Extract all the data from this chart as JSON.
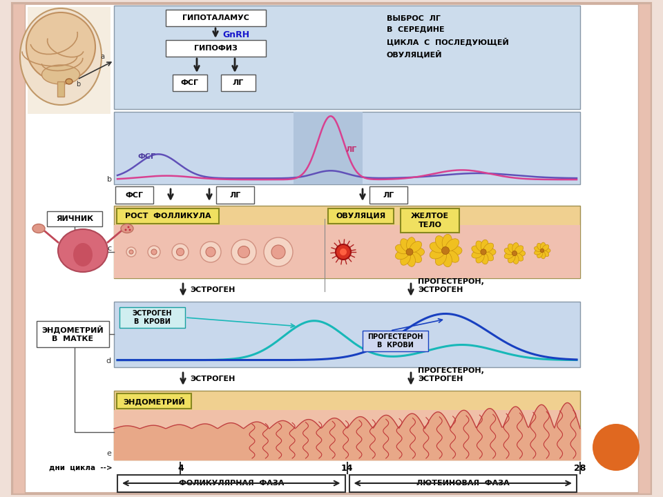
{
  "bg_color": "#f0e0d8",
  "slide_bg": "#ffffff",
  "panel_b_bg": "#c8d8ec",
  "panel_c_bg": "#f0d090",
  "panel_d_bg": "#c8d8ec",
  "panel_e_bg": "#f0d090",
  "box_border": "#333333",
  "arrow_color": "#222222",
  "highlight_box_bg": "#f0e060",
  "orange_circle_color": "#e06820",
  "title_top": "ГИПОТАЛАМУС",
  "title_gnrh": "GnRH",
  "title_gipofiz": "ГИПОФИЗ",
  "label_fsg": "ФСГ",
  "label_lg": "ЛГ",
  "label_vibros": "ВЫБРОС  ЛГ\nВ  СЕРЕДИНЕ\nЦИКЛА  С  ПОСЛЕДУЮЩЕЙ\nОВУЛЯЦИЕЙ",
  "label_rost": "РОСТ  ФОЛЛИКУЛА",
  "label_ovulyaciya": "ОВУЛЯЦИЯ",
  "label_zheltoe": "ЖЕЛТОЕ\nТЕЛО",
  "label_estrogen": "ЭСТРОГЕН",
  "label_progesteron_e": "ПРОГЕСТЕРОН,\nЭСТРОГЕН",
  "label_estrogen_krovi": "ЭСТРОГЕН\nВ  КРОВИ",
  "label_progesteron_krovi": "ПРОГЕСТЕРОН\nВ  КРОВИ",
  "label_endometrii": "ЭНДОМЕТРИЙ",
  "label_yaichnik": "ЯИЧНИК",
  "label_endometrii_matke": "ЭНДОМЕТРИЙ\nВ  МАТКЕ",
  "label_dni": "дни  цикла  -->",
  "label_4": "4",
  "label_14": "14",
  "label_28": "28",
  "label_fol_faza": "ФОЛИКУЛЯРНАЯ  ФАЗА",
  "label_lut_faza": "ЛЮТЕИНОВАЯ  ФАЗА",
  "label_a": "a",
  "label_b": "b",
  "label_c": "c",
  "label_d": "d",
  "label_e": "e",
  "label_fsg_b": "ФСГ",
  "label_lg_b": "ЛГ"
}
